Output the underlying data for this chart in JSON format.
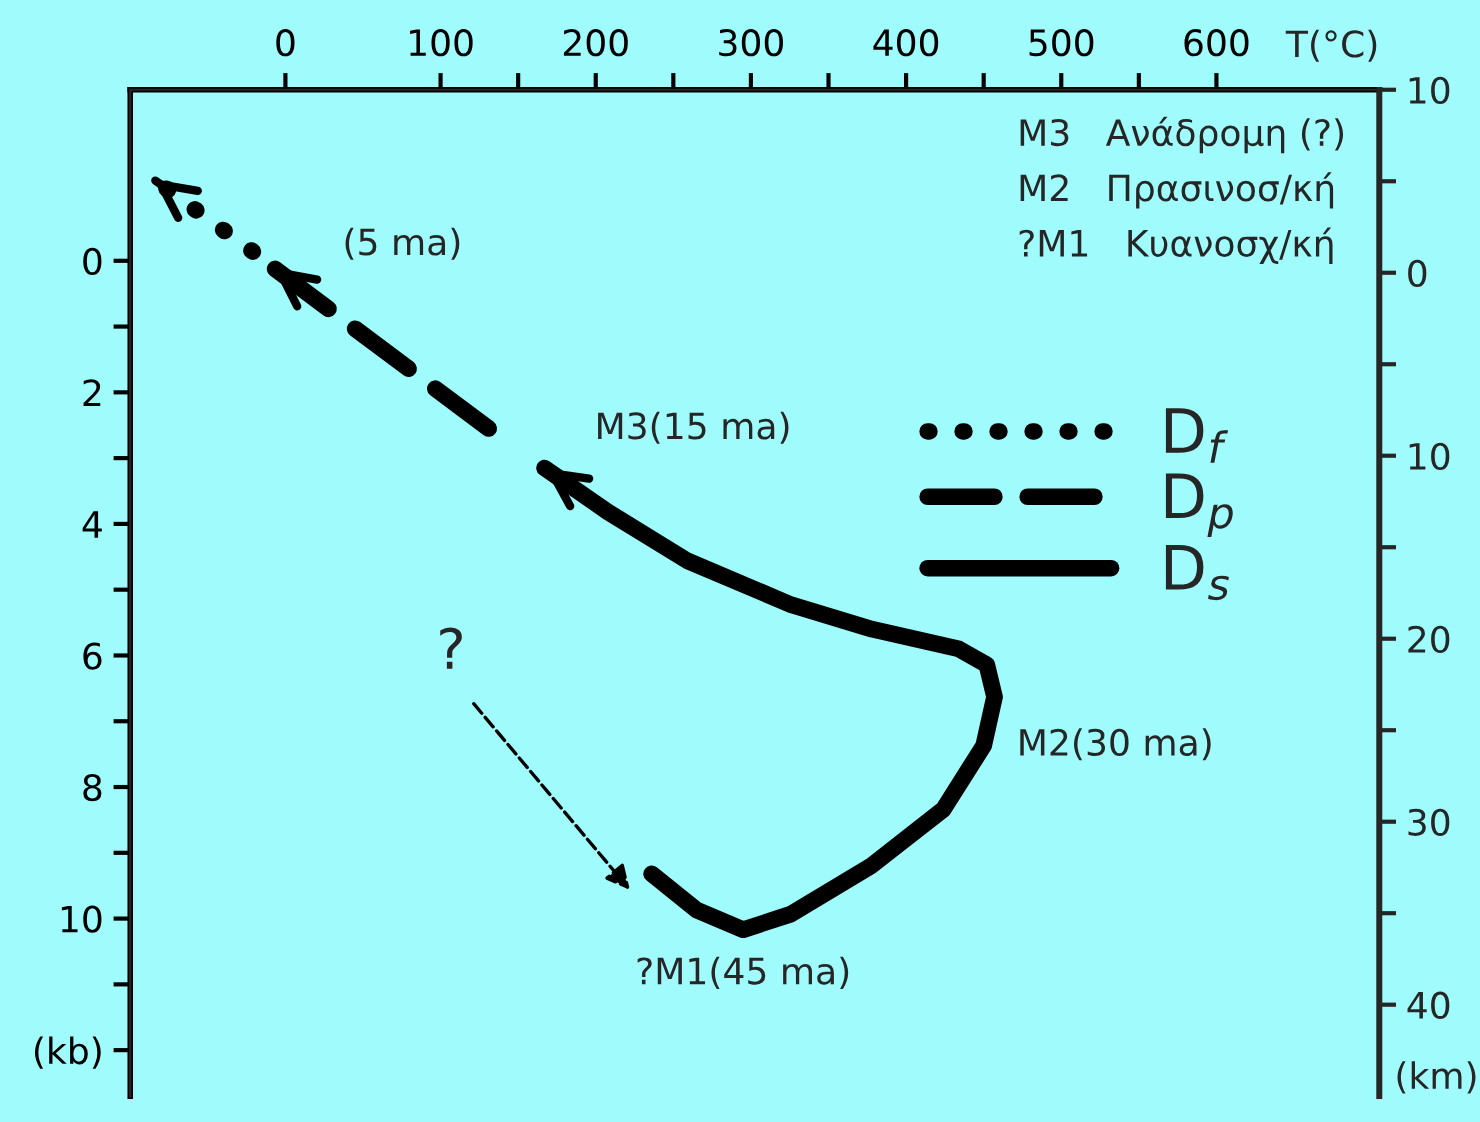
{
  "chart_data": {
    "type": "line",
    "xlabel": "T(°C)",
    "y2label": "(km)",
    "xlim": [
      -100,
      705
    ],
    "xticks": [
      0,
      100,
      {
        "value": 150,
        "label": null
      },
      200,
      {
        "value": 250,
        "label": null
      },
      300,
      {
        "value": 350,
        "label": null
      },
      400,
      {
        "value": 450,
        "label": null
      },
      500,
      {
        "value": 550,
        "label": null
      },
      600
    ],
    "ylim": [
      12.7,
      -2.6
    ],
    "yticks": [
      0,
      {
        "value": 1,
        "label": null
      },
      2,
      {
        "value": 3,
        "label": null
      },
      4,
      {
        "value": 5,
        "label": null
      },
      6,
      {
        "value": 7,
        "label": null
      },
      8,
      {
        "value": 9,
        "label": null
      },
      10,
      {
        "value": 11,
        "label": null
      },
      {
        "value": 12,
        "label": "(kb)"
      }
    ],
    "y2lim": [
      45,
      -10
    ],
    "y2ticks": [
      {
        "value": -10,
        "label": "10"
      },
      {
        "value": -5,
        "label": null
      },
      0,
      {
        "value": 5,
        "label": null
      },
      10,
      {
        "value": 15,
        "label": null
      },
      20,
      {
        "value": 25,
        "label": null
      },
      30,
      {
        "value": 35,
        "label": null
      },
      40
    ],
    "series": [
      {
        "name": "D$_{f}$",
        "color": "#000000",
        "line_style": "dotted",
        "x": [
          -21,
          -85
        ],
        "values": [
          -0.14,
          -1.24
        ]
      },
      {
        "name": "D$_{p}$",
        "color": "#000000",
        "line_style": "dashed",
        "x": [
          131,
          -8
        ],
        "values": [
          2.55,
          0.1
        ]
      },
      {
        "name": "D$_{s}$",
        "color": "#000000",
        "line_style": "solid",
        "x": [
          236,
          265,
          295,
          326,
          378,
          424,
          450,
          457,
          452,
          434,
          378,
          326,
          259,
          208,
          167
        ],
        "values": [
          9.32,
          9.87,
          10.17,
          9.93,
          9.19,
          8.34,
          7.37,
          6.63,
          6.14,
          5.9,
          5.6,
          5.23,
          4.56,
          3.82,
          3.15
        ]
      }
    ],
    "annotations": [
      {
        "text": "(5 ma)",
        "x": -8,
        "y": 0.1
      },
      {
        "text": "M3(15 ma)",
        "x": 167,
        "y": 3.15
      },
      {
        "text": "M2(30 ma)",
        "x": 457,
        "y": 7.37
      },
      {
        "text": "?M1(45 ma)",
        "x": 295,
        "y": 10.17
      },
      "M3   Ανάδρομη (?)",
      "M2   Πρασινοσ/κή",
      "?M1   Κυανοσχ/κή",
      "?"
    ],
    "legend": "top right",
    "grid": false
  }
}
